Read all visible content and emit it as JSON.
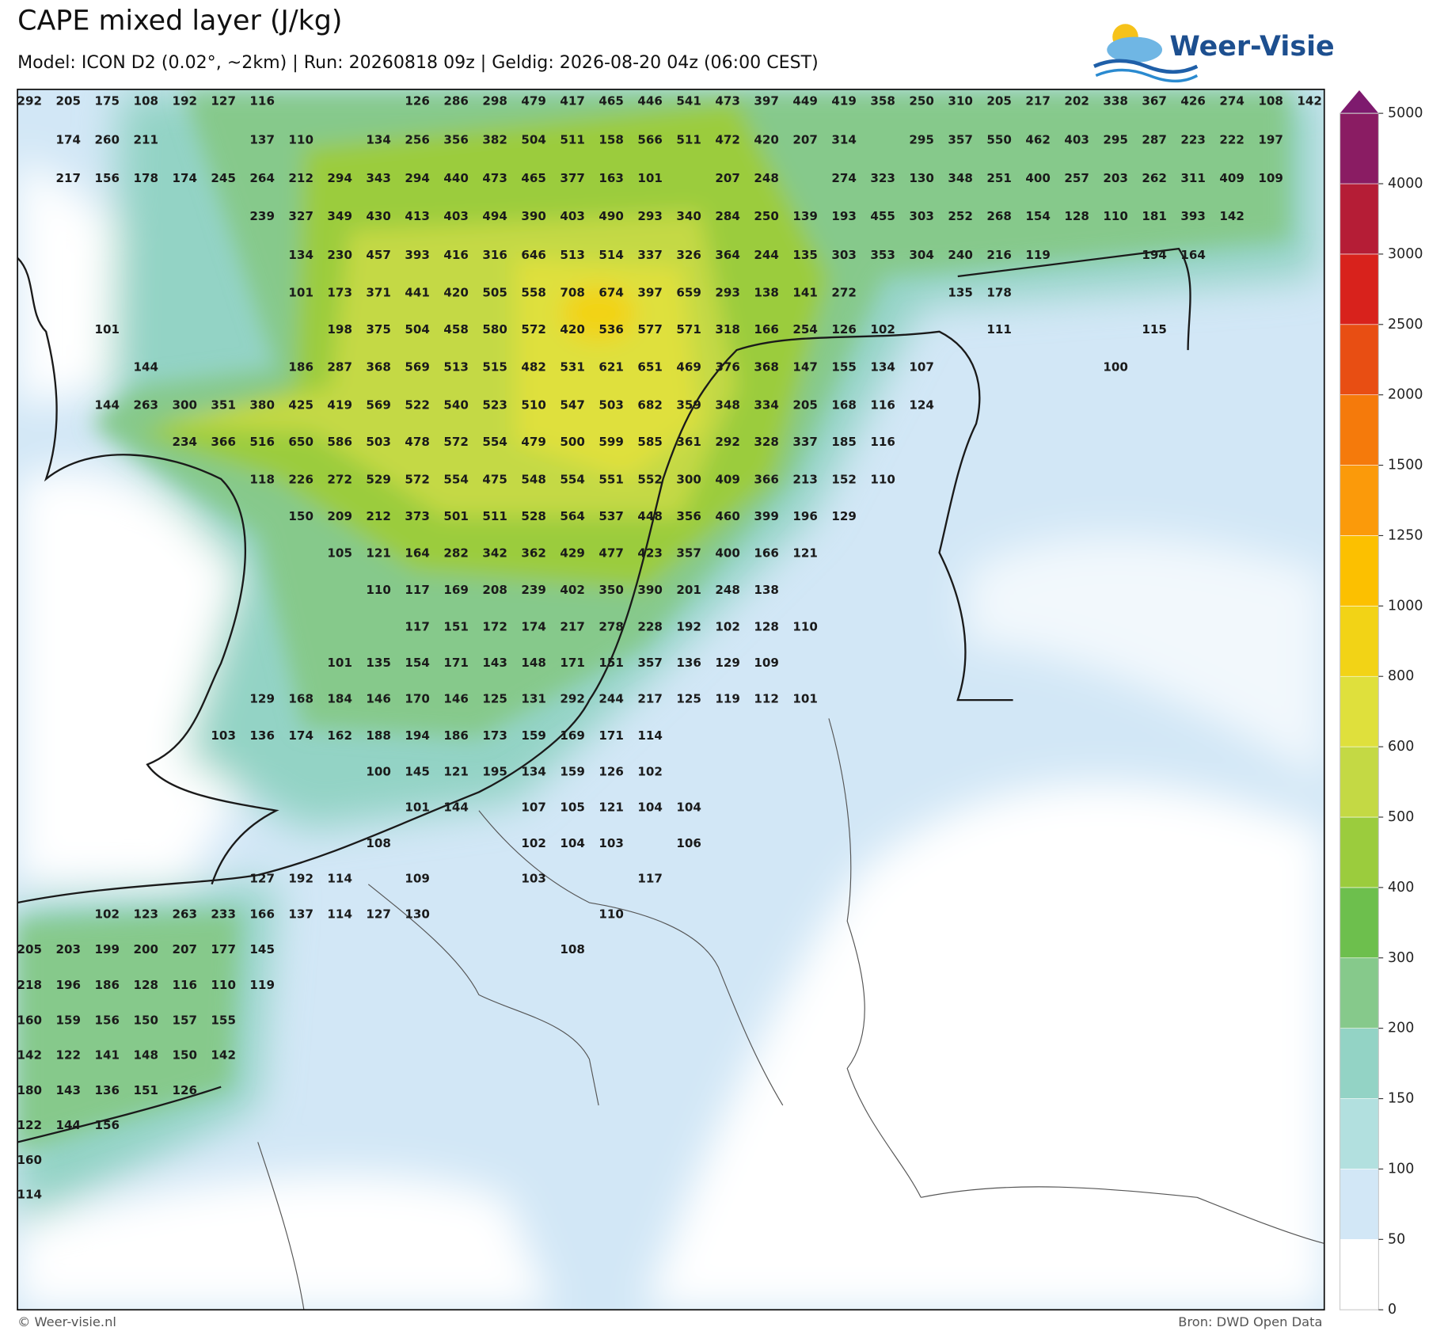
{
  "title": "CAPE mixed layer (J/kg)",
  "subtitle": "Model: ICON D2 (0.02°, ~2km)  |  Run: 20260818 09z  |  Geldig: 2026-08-20 04z (06:00 CEST)",
  "logo": "Weer-Visie",
  "footer_left": "© Weer-visie.nl",
  "footer_right": "Bron: DWD Open Data",
  "colorbar": {
    "levels": [
      0,
      50,
      100,
      150,
      200,
      300,
      400,
      500,
      600,
      800,
      1000,
      1250,
      1500,
      2000,
      2500,
      3000,
      4000,
      5000
    ],
    "colors": [
      "#ffffff",
      "#d2e7f6",
      "#b2e0df",
      "#93d3c5",
      "#86c98b",
      "#6dbf4d",
      "#9bcc3d",
      "#c4d944",
      "#dfe03c",
      "#f2d316",
      "#fcc000",
      "#fb9a0a",
      "#f57a0b",
      "#e84e13",
      "#d8221c",
      "#b51d36",
      "#8a1c63"
    ],
    "extend_color": "#7e1a6e"
  },
  "grid_values": [
    [
      292,
      205,
      175,
      108,
      192,
      127,
      116,
      null,
      null,
      null,
      126,
      286,
      298,
      479,
      417,
      465,
      446,
      541,
      473,
      397,
      449,
      419,
      358,
      250,
      310,
      205,
      217,
      202,
      338,
      367,
      426,
      274,
      108,
      142
    ],
    [
      null,
      174,
      260,
      211,
      null,
      null,
      137,
      110,
      null,
      134,
      256,
      356,
      382,
      504,
      511,
      158,
      566,
      511,
      472,
      420,
      207,
      314,
      null,
      295,
      357,
      550,
      462,
      403,
      295,
      287,
      223,
      222,
      197
    ],
    [
      null,
      217,
      156,
      178,
      174,
      245,
      264,
      212,
      294,
      343,
      294,
      440,
      473,
      465,
      377,
      163,
      101,
      null,
      207,
      248,
      null,
      274,
      323,
      130,
      348,
      251,
      400,
      257,
      203,
      262,
      311,
      409,
      109
    ],
    [
      null,
      null,
      null,
      null,
      null,
      null,
      239,
      327,
      349,
      430,
      413,
      403,
      494,
      390,
      403,
      490,
      293,
      340,
      284,
      250,
      139,
      193,
      455,
      303,
      252,
      268,
      154,
      128,
      110,
      181,
      393,
      142
    ],
    [
      null,
      null,
      null,
      null,
      null,
      null,
      null,
      134,
      230,
      457,
      393,
      416,
      316,
      646,
      513,
      514,
      337,
      326,
      364,
      244,
      135,
      303,
      353,
      304,
      240,
      216,
      119,
      null,
      null,
      194,
      164
    ],
    [
      null,
      null,
      null,
      null,
      null,
      null,
      null,
      101,
      173,
      371,
      441,
      420,
      505,
      558,
      708,
      674,
      397,
      659,
      293,
      138,
      141,
      272,
      null,
      null,
      135,
      178
    ],
    [
      null,
      null,
      101,
      null,
      null,
      null,
      null,
      null,
      198,
      375,
      504,
      458,
      580,
      572,
      420,
      536,
      577,
      571,
      318,
      166,
      254,
      126,
      102,
      null,
      null,
      111,
      null,
      null,
      null,
      115
    ],
    [
      null,
      null,
      null,
      144,
      null,
      null,
      null,
      186,
      287,
      368,
      569,
      513,
      515,
      482,
      531,
      621,
      651,
      469,
      376,
      368,
      147,
      155,
      134,
      107,
      null,
      null,
      null,
      null,
      100
    ],
    [
      null,
      null,
      144,
      263,
      300,
      351,
      380,
      425,
      419,
      569,
      522,
      540,
      523,
      510,
      547,
      503,
      682,
      359,
      348,
      334,
      205,
      168,
      116,
      124
    ],
    [
      null,
      null,
      null,
      null,
      234,
      366,
      516,
      650,
      586,
      503,
      478,
      572,
      554,
      479,
      500,
      599,
      585,
      361,
      292,
      328,
      337,
      185,
      116
    ],
    [
      null,
      null,
      null,
      null,
      null,
      null,
      118,
      226,
      272,
      529,
      572,
      554,
      475,
      548,
      554,
      551,
      552,
      300,
      409,
      366,
      213,
      152,
      110
    ],
    [
      null,
      null,
      null,
      null,
      null,
      null,
      null,
      150,
      209,
      212,
      373,
      501,
      511,
      528,
      564,
      537,
      448,
      356,
      460,
      399,
      196,
      129
    ],
    [
      null,
      null,
      null,
      null,
      null,
      null,
      null,
      null,
      105,
      121,
      164,
      282,
      342,
      362,
      429,
      477,
      423,
      357,
      400,
      166,
      121
    ],
    [
      null,
      null,
      null,
      null,
      null,
      null,
      null,
      null,
      null,
      110,
      117,
      169,
      208,
      239,
      402,
      350,
      390,
      201,
      248,
      138
    ],
    [
      null,
      null,
      null,
      null,
      null,
      null,
      null,
      null,
      null,
      null,
      117,
      151,
      172,
      174,
      217,
      278,
      228,
      192,
      102,
      128,
      110
    ],
    [
      null,
      null,
      null,
      null,
      null,
      null,
      null,
      null,
      101,
      135,
      154,
      171,
      143,
      148,
      171,
      151,
      357,
      136,
      129,
      109
    ],
    [
      null,
      null,
      null,
      null,
      null,
      null,
      129,
      168,
      184,
      146,
      170,
      146,
      125,
      131,
      292,
      244,
      217,
      125,
      119,
      112,
      101
    ],
    [
      null,
      null,
      null,
      null,
      null,
      103,
      136,
      174,
      162,
      188,
      194,
      186,
      173,
      159,
      169,
      171,
      114
    ],
    [
      null,
      null,
      null,
      null,
      null,
      null,
      null,
      null,
      null,
      100,
      145,
      121,
      195,
      134,
      159,
      126,
      102
    ],
    [
      null,
      null,
      null,
      null,
      null,
      null,
      null,
      null,
      null,
      null,
      101,
      144,
      null,
      107,
      105,
      121,
      104,
      104
    ],
    [
      null,
      null,
      null,
      null,
      null,
      null,
      null,
      null,
      null,
      108,
      null,
      null,
      null,
      102,
      104,
      103,
      null,
      106
    ],
    [
      null,
      null,
      null,
      null,
      null,
      null,
      127,
      192,
      114,
      null,
      109,
      null,
      null,
      103,
      null,
      null,
      117
    ],
    [
      null,
      null,
      102,
      123,
      263,
      233,
      166,
      137,
      114,
      127,
      130,
      null,
      null,
      null,
      null,
      110
    ],
    [
      205,
      203,
      199,
      200,
      207,
      177,
      145,
      null,
      null,
      null,
      null,
      null,
      null,
      null,
      108
    ],
    [
      218,
      196,
      186,
      128,
      116,
      110,
      119
    ],
    [
      160,
      159,
      156,
      150,
      157,
      155
    ],
    [
      142,
      122,
      141,
      148,
      150,
      142
    ],
    [
      180,
      143,
      136,
      151,
      126
    ],
    [
      122,
      144,
      156
    ],
    [
      160
    ],
    [
      114
    ]
  ]
}
